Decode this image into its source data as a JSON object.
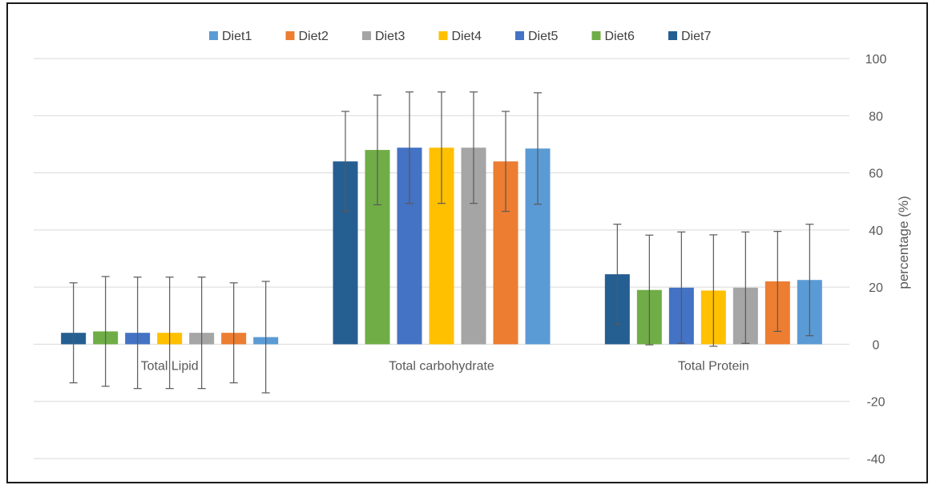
{
  "chart_data": {
    "type": "bar",
    "title": "",
    "xlabel": "",
    "ylabel": "percentage (%)",
    "ylim": [
      -40,
      100
    ],
    "yticks": [
      -40,
      -20,
      0,
      20,
      40,
      60,
      80,
      100
    ],
    "y_axis_side": "right",
    "grid": true,
    "legend_position": "top",
    "categories": [
      "Total Lipid",
      "Total carbohydrate",
      "Total  Protein"
    ],
    "bar_order": [
      "Diet7",
      "Diet6",
      "Diet5",
      "Diet4",
      "Diet3",
      "Diet2",
      "Diet1"
    ],
    "series": [
      {
        "name": "Diet1",
        "color": "#5B9BD5",
        "values": [
          2.5,
          68.5,
          22.5
        ],
        "error": [
          19.5,
          19.5,
          19.5
        ]
      },
      {
        "name": "Diet2",
        "color": "#ED7D31",
        "values": [
          4.0,
          64.0,
          22.0
        ],
        "error": [
          17.5,
          17.5,
          17.5
        ]
      },
      {
        "name": "Diet3",
        "color": "#A5A5A5",
        "values": [
          4.0,
          68.8,
          19.8
        ],
        "error": [
          19.5,
          19.5,
          19.5
        ]
      },
      {
        "name": "Diet4",
        "color": "#FFC000",
        "values": [
          4.0,
          68.8,
          18.8
        ],
        "error": [
          19.5,
          19.5,
          19.5
        ]
      },
      {
        "name": "Diet5",
        "color": "#4472C4",
        "values": [
          4.0,
          68.8,
          19.8
        ],
        "error": [
          19.5,
          19.5,
          19.5
        ]
      },
      {
        "name": "Diet6",
        "color": "#70AD47",
        "values": [
          4.5,
          68.0,
          19.0
        ],
        "error": [
          19.2,
          19.2,
          19.2
        ]
      },
      {
        "name": "Diet7",
        "color": "#255E91",
        "values": [
          4.0,
          64.0,
          24.5
        ],
        "error": [
          17.5,
          17.5,
          17.5
        ]
      }
    ]
  }
}
